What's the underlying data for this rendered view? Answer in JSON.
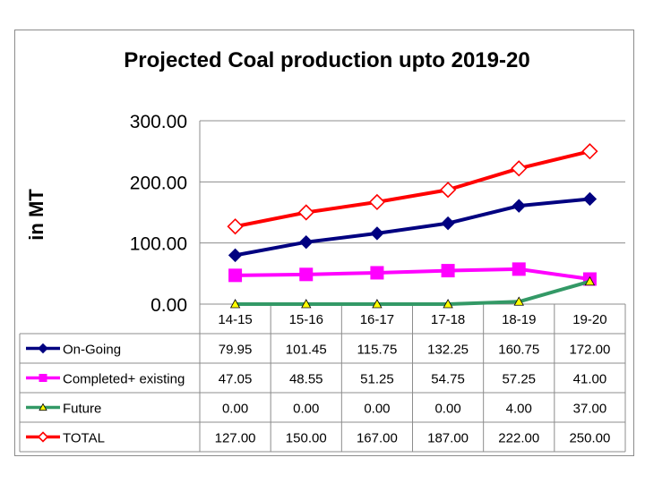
{
  "chart_data": {
    "type": "line",
    "title": "Projected Coal production upto 2019-20",
    "xlabel": "",
    "ylabel": "in MT",
    "ylim": [
      0,
      300
    ],
    "yticks": [
      "0.00",
      "100.00",
      "200.00",
      "300.00"
    ],
    "grid": true,
    "categories": [
      "14-15",
      "15-16",
      "16-17",
      "17-18",
      "18-19",
      "19-20"
    ],
    "series": [
      {
        "name": "On-Going",
        "color": "#000080",
        "marker": "diamond",
        "values": [
          79.95,
          101.45,
          115.75,
          132.25,
          160.75,
          172.0
        ],
        "labels": [
          "79.95",
          "101.45",
          "115.75",
          "132.25",
          "160.75",
          "172.00"
        ]
      },
      {
        "name": "Completed+ existing",
        "color": "#ff00ff",
        "marker": "square",
        "values": [
          47.05,
          48.55,
          51.25,
          54.75,
          57.25,
          41.0
        ],
        "labels": [
          "47.05",
          "48.55",
          "51.25",
          "54.75",
          "57.25",
          "41.00"
        ]
      },
      {
        "name": "Future",
        "color": "#339966",
        "marker": "triangle",
        "values": [
          0.0,
          0.0,
          0.0,
          0.0,
          4.0,
          37.0
        ],
        "labels": [
          "0.00",
          "0.00",
          "0.00",
          "0.00",
          "4.00",
          "37.00"
        ]
      },
      {
        "name": "TOTAL",
        "color": "#ff0000",
        "marker": "diamond-open",
        "values": [
          127.0,
          150.0,
          167.0,
          187.0,
          222.0,
          250.0
        ],
        "labels": [
          "127.00",
          "150.00",
          "167.00",
          "187.00",
          "222.00",
          "250.00"
        ]
      }
    ]
  }
}
